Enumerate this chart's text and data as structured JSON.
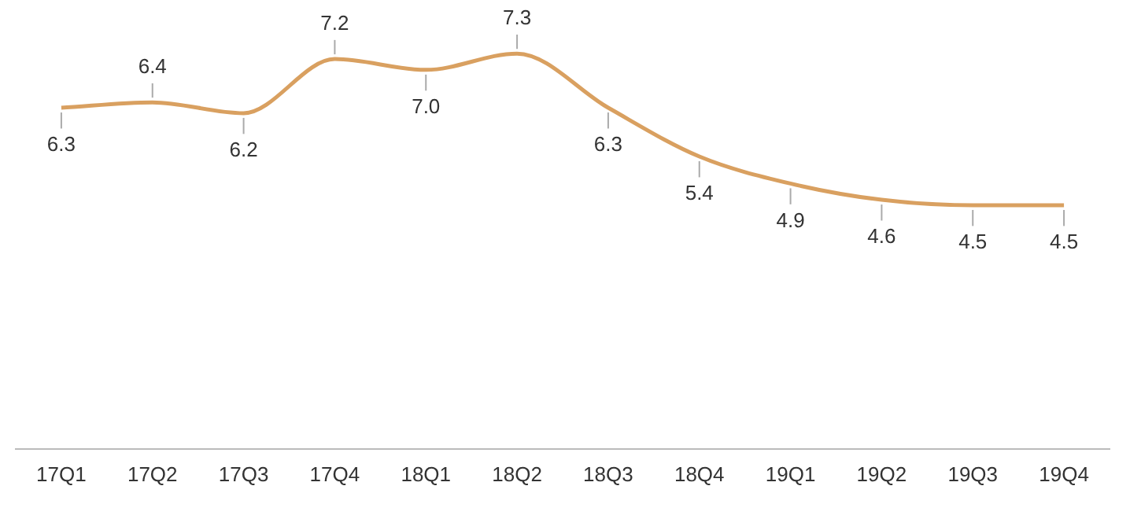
{
  "chart_data": {
    "type": "line",
    "categories": [
      "17Q1",
      "17Q2",
      "17Q3",
      "17Q4",
      "18Q1",
      "18Q2",
      "18Q3",
      "18Q4",
      "19Q1",
      "19Q2",
      "19Q3",
      "19Q4"
    ],
    "series": [
      {
        "color": "#d9a060",
        "values": [
          6.3,
          6.4,
          6.2,
          7.2,
          7.0,
          7.3,
          6.3,
          5.4,
          4.9,
          4.6,
          4.5,
          4.5
        ],
        "value_labels": [
          "6.3",
          "6.4",
          "6.2",
          "7.2",
          "7.0",
          "7.3",
          "6.3",
          "5.4",
          "4.9",
          "4.6",
          "4.5",
          "4.5"
        ]
      }
    ],
    "grid": false,
    "legend": false,
    "marker": "none",
    "tick_labels": "x"
  }
}
